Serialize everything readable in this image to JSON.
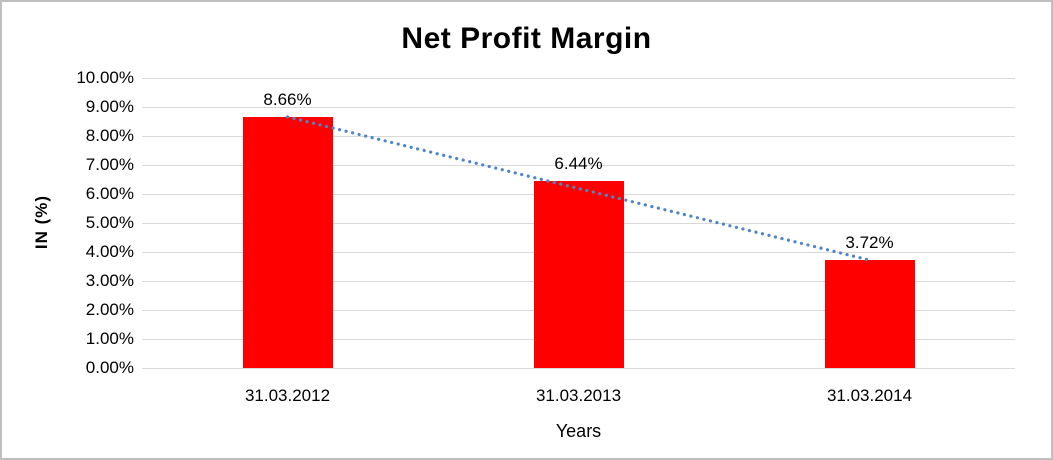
{
  "chart_data": {
    "type": "bar",
    "title": "Net Profit Margin",
    "xlabel": "Years",
    "ylabel": "IN (%)",
    "categories": [
      "31.03.2012",
      "31.03.2013",
      "31.03.2014"
    ],
    "values": [
      8.66,
      6.44,
      3.72
    ],
    "data_labels": [
      "8.66%",
      "6.44%",
      "3.72%"
    ],
    "ylim": [
      0,
      10
    ],
    "yticks": [
      {
        "value": 10,
        "label": "10.00%"
      },
      {
        "value": 9,
        "label": "9.00%"
      },
      {
        "value": 8,
        "label": "8.00%"
      },
      {
        "value": 7,
        "label": "7.00%"
      },
      {
        "value": 6,
        "label": "6.00%"
      },
      {
        "value": 5,
        "label": "5.00%"
      },
      {
        "value": 4,
        "label": "4.00%"
      },
      {
        "value": 3,
        "label": "3.00%"
      },
      {
        "value": 2,
        "label": "2.00%"
      },
      {
        "value": 1,
        "label": "1.00%"
      },
      {
        "value": 0,
        "label": "0.00%"
      }
    ],
    "grid": true,
    "legend": "none",
    "bar_color": "#ff0000",
    "trendline": {
      "style": "dotted",
      "color": "#4f85c5",
      "from": "first-bar-top",
      "to": "last-bar-top"
    }
  }
}
